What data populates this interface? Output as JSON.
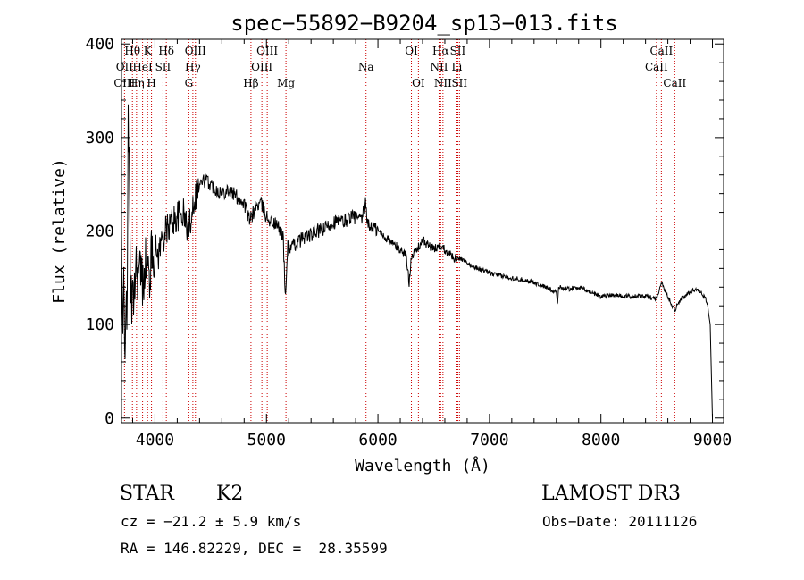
{
  "chart_data": {
    "type": "line",
    "title": "spec−55892−B9204_sp13−013.fits",
    "xlabel": "Wavelength (Å)",
    "ylabel": "Flux (relative)",
    "xlim": [
      3700,
      9100
    ],
    "ylim": [
      -5,
      405
    ],
    "grid": false,
    "x_ticks": [
      4000,
      5000,
      6000,
      7000,
      8000,
      9000
    ],
    "y_ticks": [
      0,
      100,
      200,
      300,
      400
    ],
    "spectrum_anchors": {
      "x": [
        3700,
        3710,
        3720,
        3730,
        3740,
        3750,
        3760,
        3780,
        3800,
        3830,
        3850,
        3870,
        3890,
        3910,
        3930,
        3950,
        3970,
        4000,
        4030,
        4060,
        4100,
        4150,
        4200,
        4250,
        4300,
        4350,
        4400,
        4450,
        4500,
        4550,
        4600,
        4650,
        4700,
        4750,
        4800,
        4850,
        4900,
        4950,
        5000,
        5050,
        5100,
        5150,
        5170,
        5190,
        5200,
        5250,
        5300,
        5350,
        5400,
        5450,
        5500,
        5550,
        5600,
        5650,
        5700,
        5750,
        5800,
        5850,
        5890,
        5910,
        5950,
        6000,
        6050,
        6100,
        6150,
        6200,
        6250,
        6280,
        6300,
        6320,
        6350,
        6400,
        6450,
        6500,
        6563,
        6600,
        6650,
        6700,
        6750,
        6800,
        6900,
        7000,
        7100,
        7200,
        7300,
        7400,
        7500,
        7600,
        7610,
        7620,
        7700,
        7800,
        7900,
        8000,
        8100,
        8200,
        8300,
        8400,
        8500,
        8540,
        8600,
        8662,
        8700,
        8750,
        8800,
        8850,
        8900,
        8950,
        8980,
        9000
      ],
      "y": [
        200,
        60,
        150,
        80,
        130,
        70,
        350,
        140,
        120,
        170,
        150,
        160,
        140,
        170,
        160,
        150,
        175,
        180,
        175,
        190,
        200,
        210,
        215,
        220,
        200,
        235,
        250,
        255,
        250,
        245,
        240,
        245,
        240,
        235,
        230,
        210,
        225,
        230,
        215,
        210,
        205,
        195,
        125,
        185,
        180,
        185,
        190,
        195,
        195,
        200,
        200,
        205,
        210,
        210,
        210,
        215,
        215,
        210,
        230,
        205,
        205,
        200,
        195,
        190,
        185,
        180,
        175,
        145,
        175,
        175,
        180,
        190,
        185,
        180,
        185,
        180,
        175,
        170,
        170,
        165,
        160,
        155,
        152,
        150,
        148,
        145,
        140,
        135,
        120,
        140,
        138,
        140,
        135,
        130,
        132,
        130,
        130,
        130,
        128,
        145,
        130,
        115,
        125,
        130,
        135,
        138,
        135,
        125,
        100,
        0
      ]
    },
    "line_markers": [
      {
        "label": "Hθ",
        "wavelength": 3798,
        "row": 1
      },
      {
        "label": "OII",
        "wavelength": 3727,
        "row": 2
      },
      {
        "label": "OIII",
        "wavelength": 3727,
        "row": 3
      },
      {
        "label": "K",
        "wavelength": 3934,
        "row": 1
      },
      {
        "label": "HeI",
        "wavelength": 3889,
        "row": 2
      },
      {
        "label": "Hη",
        "wavelength": 3835,
        "row": 3
      },
      {
        "label": "SII",
        "wavelength": 4072,
        "row": 2
      },
      {
        "label": "H",
        "wavelength": 3969,
        "row": 3
      },
      {
        "label": "Hδ",
        "wavelength": 4102,
        "row": 1
      },
      {
        "label": "OIII",
        "wavelength": 4363,
        "row": 1
      },
      {
        "label": "Hγ",
        "wavelength": 4340,
        "row": 2
      },
      {
        "label": "G",
        "wavelength": 4304,
        "row": 3
      },
      {
        "label": "OIII",
        "wavelength": 5007,
        "row": 1
      },
      {
        "label": "OIII",
        "wavelength": 4959,
        "row": 2
      },
      {
        "label": "Hβ",
        "wavelength": 4861,
        "row": 3
      },
      {
        "label": "Mg",
        "wavelength": 5175,
        "row": 3
      },
      {
        "label": "Na",
        "wavelength": 5893,
        "row": 2
      },
      {
        "label": "OI",
        "wavelength": 6300,
        "row": 1
      },
      {
        "label": "OI",
        "wavelength": 6363,
        "row": 3
      },
      {
        "label": "Hα",
        "wavelength": 6563,
        "row": 1
      },
      {
        "label": "SII",
        "wavelength": 6716,
        "row": 1
      },
      {
        "label": "NII",
        "wavelength": 6548,
        "row": 2
      },
      {
        "label": "Li",
        "wavelength": 6708,
        "row": 2
      },
      {
        "label": "NII",
        "wavelength": 6583,
        "row": 3
      },
      {
        "label": "SII",
        "wavelength": 6731,
        "row": 3
      },
      {
        "label": "CaII",
        "wavelength": 8542,
        "row": 1
      },
      {
        "label": "CaII",
        "wavelength": 8498,
        "row": 2
      },
      {
        "label": "CaII",
        "wavelength": 8662,
        "row": 3
      }
    ]
  },
  "info": {
    "class_text": "STAR",
    "subclass_text": "K2",
    "survey": "LAMOST DR3",
    "redshift": "cz = −21.2 ± 5.9 km/s",
    "obs_date": "Obs−Date: 20111126",
    "coords": "RA = 146.82229, DEC =  28.35599"
  },
  "colors": {
    "spectrum": "#000000",
    "marker_line": "#cc0000",
    "axes": "#000000"
  }
}
